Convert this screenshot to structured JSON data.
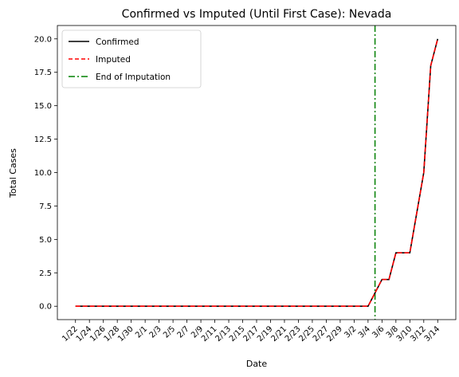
{
  "chart_data": {
    "type": "line",
    "title": "Confirmed vs Imputed (Until First Case): Nevada",
    "xlabel": "Date",
    "ylabel": "Total Cases",
    "ylim": [
      -1.0,
      21.0
    ],
    "yticks": [
      0.0,
      2.5,
      5.0,
      7.5,
      10.0,
      12.5,
      15.0,
      17.5,
      20.0
    ],
    "ytick_labels": [
      "0.0",
      "2.5",
      "5.0",
      "7.5",
      "10.0",
      "12.5",
      "15.0",
      "17.5",
      "20.0"
    ],
    "x": [
      "1/22",
      "1/23",
      "1/24",
      "1/25",
      "1/26",
      "1/27",
      "1/28",
      "1/29",
      "1/30",
      "1/31",
      "2/1",
      "2/2",
      "2/3",
      "2/4",
      "2/5",
      "2/6",
      "2/7",
      "2/8",
      "2/9",
      "2/10",
      "2/11",
      "2/12",
      "2/13",
      "2/14",
      "2/15",
      "2/16",
      "2/17",
      "2/18",
      "2/19",
      "2/20",
      "2/21",
      "2/22",
      "2/23",
      "2/24",
      "2/25",
      "2/26",
      "2/27",
      "2/28",
      "2/29",
      "3/1",
      "3/2",
      "3/3",
      "3/4",
      "3/5",
      "3/6",
      "3/7",
      "3/8",
      "3/9",
      "3/10",
      "3/11",
      "3/12",
      "3/13",
      "3/14"
    ],
    "xtick_labels": [
      "1/22",
      "1/24",
      "1/26",
      "1/28",
      "1/30",
      "2/1",
      "2/3",
      "2/5",
      "2/7",
      "2/9",
      "2/11",
      "2/13",
      "2/15",
      "2/17",
      "2/19",
      "2/21",
      "2/23",
      "2/25",
      "2/27",
      "2/29",
      "3/2",
      "3/4",
      "3/6",
      "3/8",
      "3/10",
      "3/12",
      "3/14"
    ],
    "series": [
      {
        "name": "Confirmed",
        "color": "#000000",
        "style": "solid",
        "values": [
          0,
          0,
          0,
          0,
          0,
          0,
          0,
          0,
          0,
          0,
          0,
          0,
          0,
          0,
          0,
          0,
          0,
          0,
          0,
          0,
          0,
          0,
          0,
          0,
          0,
          0,
          0,
          0,
          0,
          0,
          0,
          0,
          0,
          0,
          0,
          0,
          0,
          0,
          0,
          0,
          0,
          0,
          0,
          1,
          2,
          2,
          4,
          4,
          4,
          7,
          10,
          18,
          20
        ]
      },
      {
        "name": "Imputed",
        "color": "#ff0000",
        "style": "dashed",
        "values": [
          0,
          0,
          0,
          0,
          0,
          0,
          0,
          0,
          0,
          0,
          0,
          0,
          0,
          0,
          0,
          0,
          0,
          0,
          0,
          0,
          0,
          0,
          0,
          0,
          0,
          0,
          0,
          0,
          0,
          0,
          0,
          0,
          0,
          0,
          0,
          0,
          0,
          0,
          0,
          0,
          0,
          0,
          0,
          1,
          2,
          2,
          4,
          4,
          4,
          7,
          10,
          18,
          20
        ]
      }
    ],
    "vline": {
      "name": "End of Imputation",
      "x": "3/5",
      "color": "#008000",
      "style": "dashdot"
    },
    "legend": {
      "position": "top-left"
    },
    "grid": false
  }
}
